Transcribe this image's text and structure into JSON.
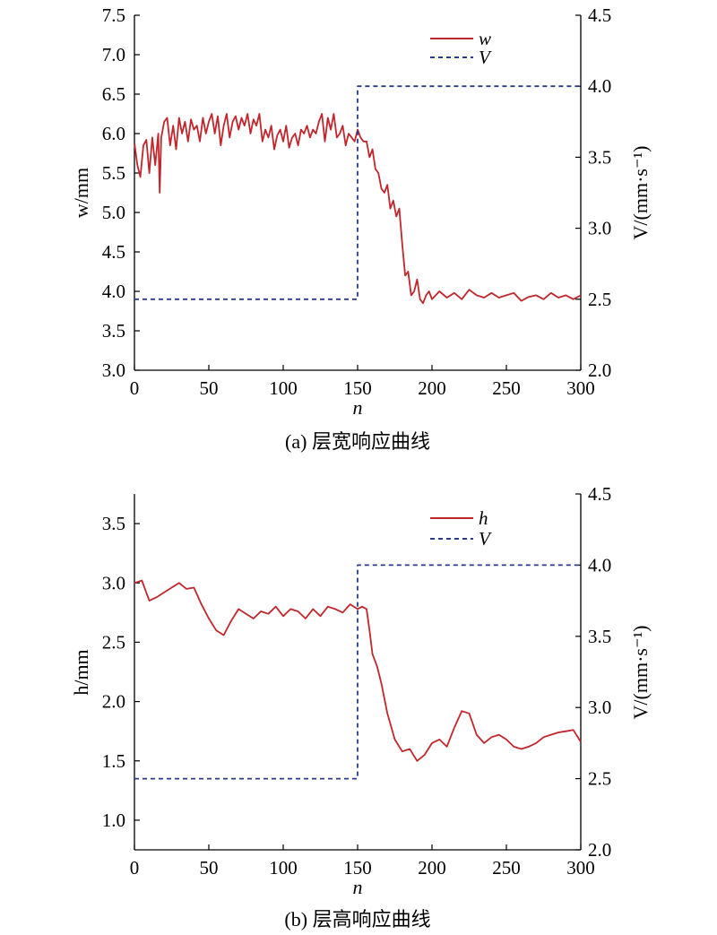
{
  "colors": {
    "w_line": "#c0272d",
    "h_line": "#c0272d",
    "v_line": "#2b3a8c",
    "axis": "#000000"
  },
  "chart_data": [
    {
      "type": "line",
      "caption": "(a) 层宽响应曲线",
      "xlabel": "n",
      "ylabel": "w/mm",
      "y2label": "V/(mm·s⁻¹)",
      "xlim": [
        0,
        300
      ],
      "ylim": [
        3.0,
        7.5
      ],
      "y2lim": [
        2.0,
        4.5
      ],
      "xticks": [
        "0",
        "50",
        "100",
        "150",
        "200",
        "250",
        "300"
      ],
      "yticks": [
        "3.0",
        "3.5",
        "4.0",
        "4.5",
        "5.0",
        "5.5",
        "6.0",
        "6.5",
        "7.0",
        "7.5"
      ],
      "y2ticks": [
        "2.0",
        "2.5",
        "3.0",
        "3.5",
        "4.0",
        "4.5"
      ],
      "legend": "top-right",
      "grid": false,
      "series": [
        {
          "name": "w",
          "axis": "left",
          "style": "solid",
          "x": [
            0,
            2,
            4,
            6,
            8,
            10,
            12,
            14,
            16,
            17,
            18,
            20,
            22,
            24,
            26,
            28,
            30,
            32,
            34,
            36,
            38,
            40,
            42,
            44,
            46,
            48,
            50,
            52,
            54,
            56,
            58,
            60,
            62,
            64,
            66,
            68,
            70,
            72,
            74,
            76,
            78,
            80,
            82,
            84,
            86,
            88,
            90,
            92,
            94,
            96,
            98,
            100,
            102,
            104,
            106,
            108,
            110,
            112,
            114,
            116,
            118,
            120,
            122,
            124,
            126,
            128,
            130,
            132,
            134,
            136,
            138,
            140,
            142,
            144,
            146,
            148,
            150,
            152,
            154,
            156,
            158,
            160,
            162,
            164,
            166,
            168,
            170,
            172,
            174,
            176,
            178,
            180,
            182,
            184,
            186,
            188,
            190,
            192,
            194,
            196,
            198,
            200,
            205,
            210,
            215,
            220,
            225,
            230,
            235,
            240,
            245,
            250,
            255,
            260,
            265,
            270,
            275,
            280,
            285,
            290,
            295,
            300
          ],
          "y": [
            5.88,
            5.6,
            5.45,
            5.85,
            5.92,
            5.5,
            5.95,
            5.6,
            6.0,
            5.25,
            5.95,
            6.15,
            6.2,
            5.85,
            6.1,
            5.8,
            6.2,
            6.0,
            6.15,
            5.9,
            6.18,
            6.05,
            6.1,
            5.9,
            6.2,
            6.0,
            6.15,
            6.25,
            6.0,
            6.22,
            5.85,
            6.1,
            6.25,
            5.95,
            6.15,
            6.22,
            6.05,
            6.2,
            6.1,
            6.25,
            6.0,
            6.18,
            6.1,
            6.25,
            5.9,
            6.05,
            5.95,
            6.1,
            5.8,
            5.98,
            6.05,
            5.9,
            6.1,
            5.82,
            5.95,
            6.0,
            5.85,
            6.05,
            6.0,
            6.1,
            5.95,
            6.05,
            6.0,
            6.15,
            6.25,
            5.9,
            6.2,
            6.05,
            6.25,
            5.95,
            6.0,
            6.1,
            5.85,
            6.0,
            5.95,
            5.9,
            6.05,
            5.95,
            5.9,
            5.9,
            5.7,
            5.8,
            5.55,
            5.5,
            5.3,
            5.25,
            5.35,
            5.05,
            5.15,
            4.95,
            5.05,
            4.6,
            4.2,
            4.25,
            3.95,
            4.0,
            4.15,
            3.9,
            3.85,
            3.95,
            4.0,
            3.9,
            4.0,
            3.92,
            3.98,
            3.9,
            4.02,
            3.95,
            3.92,
            3.98,
            3.92,
            3.95,
            3.98,
            3.88,
            3.93,
            3.95,
            3.9,
            3.98,
            3.92,
            3.95,
            3.9,
            3.95
          ]
        },
        {
          "name": "V",
          "axis": "right",
          "style": "dashed",
          "x": [
            0,
            150,
            150,
            300
          ],
          "y": [
            2.5,
            2.5,
            4.0,
            4.0
          ]
        }
      ]
    },
    {
      "type": "line",
      "caption": "(b) 层高响应曲线",
      "xlabel": "n",
      "ylabel": "h/mm",
      "y2label": "V/(mm·s⁻¹)",
      "xlim": [
        0,
        300
      ],
      "ylim": [
        0.75,
        3.75
      ],
      "y2lim": [
        2.0,
        4.5
      ],
      "xticks": [
        "0",
        "50",
        "100",
        "150",
        "200",
        "250",
        "300"
      ],
      "yticks": [
        "1.0",
        "1.5",
        "2.0",
        "2.5",
        "3.0",
        "3.5"
      ],
      "y2ticks": [
        "2.0",
        "2.5",
        "3.0",
        "3.5",
        "4.0",
        "4.5"
      ],
      "legend": "top-right",
      "grid": false,
      "series": [
        {
          "name": "h",
          "axis": "left",
          "style": "solid",
          "x": [
            0,
            5,
            10,
            15,
            20,
            25,
            30,
            35,
            40,
            45,
            50,
            55,
            60,
            65,
            70,
            75,
            80,
            85,
            90,
            95,
            100,
            105,
            110,
            115,
            120,
            125,
            130,
            135,
            140,
            145,
            150,
            153,
            156,
            158,
            160,
            163,
            166,
            170,
            175,
            180,
            185,
            190,
            195,
            200,
            205,
            210,
            215,
            220,
            225,
            230,
            235,
            240,
            245,
            250,
            255,
            260,
            265,
            270,
            275,
            280,
            285,
            290,
            295,
            300
          ],
          "y": [
            3.0,
            3.02,
            2.85,
            2.88,
            2.92,
            2.96,
            3.0,
            2.95,
            2.96,
            2.82,
            2.7,
            2.6,
            2.56,
            2.68,
            2.78,
            2.74,
            2.7,
            2.76,
            2.74,
            2.8,
            2.72,
            2.78,
            2.76,
            2.7,
            2.78,
            2.72,
            2.8,
            2.78,
            2.75,
            2.82,
            2.78,
            2.8,
            2.78,
            2.6,
            2.4,
            2.3,
            2.15,
            1.9,
            1.68,
            1.58,
            1.6,
            1.5,
            1.55,
            1.65,
            1.68,
            1.62,
            1.78,
            1.92,
            1.9,
            1.72,
            1.65,
            1.7,
            1.72,
            1.68,
            1.62,
            1.6,
            1.62,
            1.65,
            1.7,
            1.72,
            1.74,
            1.75,
            1.76,
            1.66
          ]
        },
        {
          "name": "V",
          "axis": "right",
          "style": "dashed",
          "x": [
            0,
            150,
            150,
            300
          ],
          "y": [
            2.5,
            2.5,
            4.0,
            4.0
          ]
        }
      ]
    }
  ]
}
